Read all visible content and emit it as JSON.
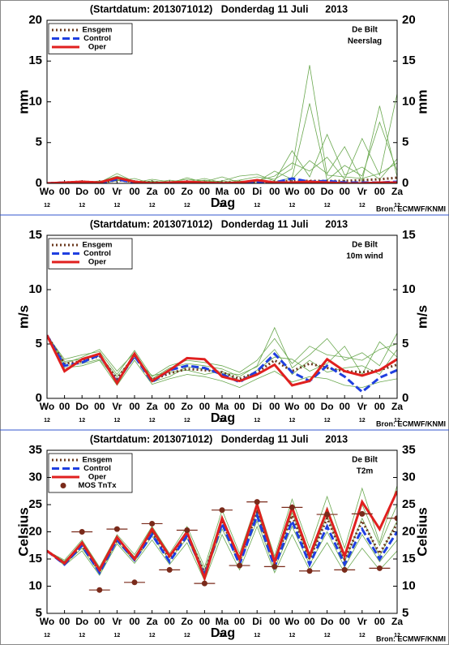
{
  "chart_data": [
    {
      "type": "line",
      "title": "(Startdatum: 2013071012)   Donderdag 11 Juli      2013",
      "station": "De Bilt",
      "variable": "Neerslag",
      "ylabel": "mm",
      "xlabel": "Dag",
      "source": "Bron: ECMWF/KNMI",
      "categories": [
        "Wo",
        "00",
        "Do",
        "00",
        "Vr",
        "00",
        "Za",
        "00",
        "Zo",
        "00",
        "Ma",
        "00",
        "Di",
        "00",
        "Wo",
        "00",
        "Do",
        "00",
        "Vr",
        "00",
        "Za"
      ],
      "hour_labels": [
        "12",
        null,
        "12",
        null,
        "12",
        null,
        "12",
        null,
        "12",
        null,
        "12",
        null,
        "12",
        null,
        "12",
        null,
        "12",
        null,
        "12",
        null,
        "12"
      ],
      "ylim": [
        0,
        20
      ],
      "yticks": [
        0,
        5,
        10,
        15,
        20
      ],
      "member_color": "#6aa84f",
      "members": [
        [
          0,
          0.1,
          0.3,
          0.2,
          0.9,
          0.3,
          0.1,
          0.2,
          0.5,
          0.3,
          0.2,
          0.4,
          0.8,
          0.5,
          1.8,
          14.5,
          1.0,
          0.8,
          0.6,
          1.2,
          2.5
        ],
        [
          0,
          0.2,
          0.1,
          0.1,
          0.5,
          0.1,
          0.3,
          0.1,
          0.2,
          0.6,
          0.1,
          0.2,
          0.3,
          0.9,
          2.5,
          1.5,
          3.2,
          0.5,
          5.5,
          1.0,
          11.0
        ],
        [
          0,
          0,
          0.2,
          0,
          0.3,
          0.6,
          0,
          0.4,
          0.1,
          0.2,
          0.8,
          0.1,
          0.5,
          0.2,
          0.7,
          9.8,
          0.4,
          2.2,
          0.9,
          7.5,
          1.5
        ],
        [
          0,
          0.1,
          0,
          0.1,
          1.2,
          0.2,
          0.2,
          0,
          0.7,
          0.1,
          0.3,
          0.9,
          1.1,
          0.3,
          4.0,
          0.8,
          6.0,
          1.0,
          2.0,
          0.5,
          3.0
        ],
        [
          0,
          0,
          0.1,
          0.3,
          0.4,
          0.1,
          0.5,
          0.2,
          0,
          0.4,
          0,
          0.3,
          0.2,
          1.5,
          0.5,
          2.8,
          1.2,
          4.5,
          0.3,
          9.5,
          0.8
        ]
      ],
      "series": [
        {
          "name": "Ensgem",
          "color": "#6b3a1f",
          "style": "dotted",
          "values": [
            0,
            0.1,
            0.2,
            0.1,
            0.4,
            0.2,
            0.1,
            0.1,
            0.1,
            0.1,
            0.1,
            0.1,
            0.2,
            0.2,
            0.3,
            0.3,
            0.3,
            0.3,
            0.4,
            0.5,
            0.7
          ]
        },
        {
          "name": "Control",
          "color": "#1f3fe0",
          "style": "dashed",
          "values": [
            0,
            0.1,
            0.1,
            0,
            0.5,
            0.1,
            0,
            0,
            0.1,
            0,
            0,
            0,
            0.1,
            0.1,
            0.6,
            0.2,
            0.3,
            0.1,
            0.1,
            0.1,
            0.2
          ]
        },
        {
          "name": "Oper",
          "color": "#e0201f",
          "style": "solid",
          "values": [
            0,
            0.1,
            0.2,
            0.1,
            0.7,
            0.2,
            0,
            0.1,
            0.2,
            0.1,
            0,
            0.1,
            0.4,
            0.1,
            0.1,
            0.2,
            0.1,
            0,
            0,
            0.1,
            0.1
          ]
        }
      ]
    },
    {
      "type": "line",
      "title": "(Startdatum: 2013071012)   Donderdag 11 Juli      2013",
      "station": "De Bilt",
      "variable": "10m wind",
      "ylabel": "m/s",
      "xlabel": "Dag",
      "source": "Bron: ECMWF/KNMI",
      "categories": [
        "Wo",
        "00",
        "Do",
        "00",
        "Vr",
        "00",
        "Za",
        "00",
        "Zo",
        "00",
        "Ma",
        "00",
        "Di",
        "00",
        "Wo",
        "00",
        "Do",
        "00",
        "Vr",
        "00",
        "Za"
      ],
      "hour_labels": [
        "12",
        null,
        "12",
        null,
        "12",
        null,
        "12",
        null,
        "12",
        null,
        "12",
        null,
        "12",
        null,
        "12",
        null,
        "12",
        null,
        "12",
        null,
        "12"
      ],
      "ylim": [
        0,
        15
      ],
      "yticks": [
        0,
        5,
        10,
        15
      ],
      "member_color": "#6aa84f",
      "members": [
        [
          5.8,
          3.6,
          4.0,
          4.3,
          2.2,
          4.4,
          2.0,
          3.0,
          3.5,
          3.3,
          3.0,
          2.4,
          3.5,
          5.5,
          3.2,
          4.8,
          4.0,
          3.8,
          3.5,
          4.5,
          5.0
        ],
        [
          5.8,
          2.8,
          3.0,
          3.5,
          1.2,
          3.5,
          1.3,
          1.8,
          2.2,
          2.0,
          1.6,
          1.0,
          1.8,
          2.5,
          1.5,
          2.0,
          1.8,
          1.2,
          1.0,
          1.5,
          1.8
        ],
        [
          5.8,
          3.2,
          3.8,
          4.5,
          2.5,
          4.2,
          1.8,
          2.8,
          3.2,
          3.0,
          2.7,
          2.0,
          3.0,
          6.5,
          2.8,
          4.0,
          5.5,
          3.5,
          4.2,
          3.0,
          6.0
        ],
        [
          5.8,
          3.0,
          3.2,
          3.6,
          1.6,
          3.7,
          2.1,
          2.4,
          2.6,
          2.2,
          2.5,
          1.6,
          2.6,
          3.8,
          3.6,
          2.5,
          3.2,
          4.8,
          2.2,
          5.2,
          3.8
        ],
        [
          5.8,
          3.4,
          3.6,
          4.0,
          2.0,
          3.9,
          1.5,
          2.0,
          2.9,
          2.7,
          2.3,
          2.2,
          2.9,
          4.5,
          2.2,
          3.5,
          2.4,
          2.8,
          3.0,
          2.2,
          4.5
        ]
      ],
      "series": [
        {
          "name": "Ensgem",
          "color": "#6b3a1f",
          "style": "dotted",
          "values": [
            5.8,
            3.2,
            3.4,
            3.9,
            1.8,
            3.9,
            1.7,
            2.3,
            2.7,
            2.6,
            2.4,
            1.8,
            2.4,
            3.5,
            2.5,
            3.2,
            2.8,
            2.5,
            2.4,
            2.6,
            3.1
          ]
        },
        {
          "name": "Control",
          "color": "#1f3fe0",
          "style": "dashed",
          "values": [
            5.8,
            3.0,
            3.3,
            4.0,
            1.5,
            3.9,
            1.5,
            2.6,
            3.0,
            2.8,
            2.2,
            1.5,
            2.5,
            4.1,
            2.4,
            1.6,
            3.0,
            2.0,
            0.6,
            1.9,
            2.6
          ]
        },
        {
          "name": "Oper",
          "color": "#e0201f",
          "style": "solid",
          "values": [
            5.8,
            2.5,
            3.6,
            4.1,
            1.4,
            4.1,
            1.6,
            2.6,
            3.7,
            3.6,
            2.0,
            1.6,
            2.2,
            3.1,
            1.2,
            1.6,
            3.6,
            2.5,
            2.1,
            2.6,
            3.6
          ]
        }
      ]
    },
    {
      "type": "line",
      "title": "(Startdatum: 2013071012)   Donderdag 11 Juli      2013",
      "station": "De Bilt",
      "variable": "T2m",
      "ylabel": "Celsius",
      "xlabel": "Dag",
      "source": "Bron: ECMWF/KNMI",
      "categories": [
        "Wo",
        "00",
        "Do",
        "00",
        "Vr",
        "00",
        "Za",
        "00",
        "Zo",
        "00",
        "Ma",
        "00",
        "Di",
        "00",
        "Wo",
        "00",
        "Do",
        "00",
        "Vr",
        "00",
        "Za"
      ],
      "hour_labels": [
        "12",
        null,
        "12",
        null,
        "12",
        null,
        "12",
        null,
        "12",
        null,
        "12",
        null,
        "12",
        null,
        "12",
        null,
        "12",
        null,
        "12",
        null,
        "12"
      ],
      "ylim": [
        5,
        35
      ],
      "yticks": [
        5,
        10,
        15,
        20,
        25,
        30,
        35
      ],
      "member_color": "#6aa84f",
      "members": [
        [
          16.5,
          14.8,
          18.5,
          13.5,
          19.5,
          15.8,
          21.0,
          16.0,
          21.0,
          13.5,
          24.0,
          16.0,
          25.5,
          15.5,
          26.0,
          17.0,
          26.5,
          17.0,
          28.0,
          18.0,
          28.5
        ],
        [
          16.5,
          13.8,
          16.5,
          12.0,
          17.8,
          14.2,
          18.5,
          14.0,
          18.0,
          11.0,
          19.5,
          13.0,
          21.0,
          12.5,
          19.5,
          13.0,
          18.0,
          12.5,
          17.0,
          13.0,
          16.5
        ],
        [
          16.5,
          14.5,
          17.8,
          13.2,
          19.0,
          15.4,
          20.2,
          15.6,
          20.2,
          12.8,
          22.8,
          15.2,
          24.5,
          14.8,
          24.0,
          16.0,
          24.5,
          16.0,
          25.0,
          17.5,
          25.0
        ],
        [
          16.5,
          14.0,
          17.0,
          12.4,
          18.2,
          14.6,
          19.2,
          14.8,
          18.8,
          11.8,
          20.5,
          14.2,
          22.0,
          13.2,
          21.0,
          14.0,
          20.0,
          13.5,
          19.5,
          14.5,
          18.5
        ],
        [
          16.5,
          14.6,
          17.9,
          13.0,
          18.8,
          15.2,
          20.0,
          15.3,
          19.8,
          12.2,
          22.2,
          14.6,
          23.8,
          14.0,
          23.5,
          14.8,
          23.0,
          14.5,
          22.5,
          15.5,
          22.0
        ]
      ],
      "series": [
        {
          "name": "Ensgem",
          "color": "#6b3a1f",
          "style": "dotted",
          "values": [
            16.5,
            14.3,
            17.5,
            12.8,
            18.6,
            15.0,
            19.8,
            15.2,
            19.5,
            12.5,
            21.8,
            14.8,
            23.5,
            14.2,
            23.0,
            15.0,
            22.5,
            15.0,
            22.0,
            16.0,
            21.5
          ]
        },
        {
          "name": "Control",
          "color": "#1f3fe0",
          "style": "dashed",
          "values": [
            16.5,
            14.0,
            17.5,
            12.5,
            18.5,
            14.8,
            19.5,
            14.5,
            19.3,
            12.0,
            21.5,
            14.0,
            23.0,
            13.5,
            22.0,
            14.0,
            21.0,
            14.0,
            20.5,
            15.0,
            20.0
          ]
        },
        {
          "name": "Oper",
          "color": "#e0201f",
          "style": "solid",
          "values": [
            16.5,
            14.2,
            18.0,
            13.0,
            19.0,
            15.0,
            20.5,
            15.5,
            20.0,
            11.5,
            22.5,
            15.0,
            25.0,
            14.5,
            24.5,
            15.5,
            24.0,
            15.5,
            25.5,
            20.5,
            27.5
          ]
        },
        {
          "name": "MOS TnTx",
          "color": "#7a2a1a",
          "style": "points",
          "values": [
            null,
            null,
            20.0,
            9.3,
            20.5,
            10.7,
            21.5,
            13.0,
            20.3,
            10.5,
            24.0,
            13.8,
            25.5,
            13.6,
            24.5,
            12.8,
            23.2,
            13.0,
            23.3,
            13.3,
            22.5
          ]
        }
      ]
    }
  ]
}
